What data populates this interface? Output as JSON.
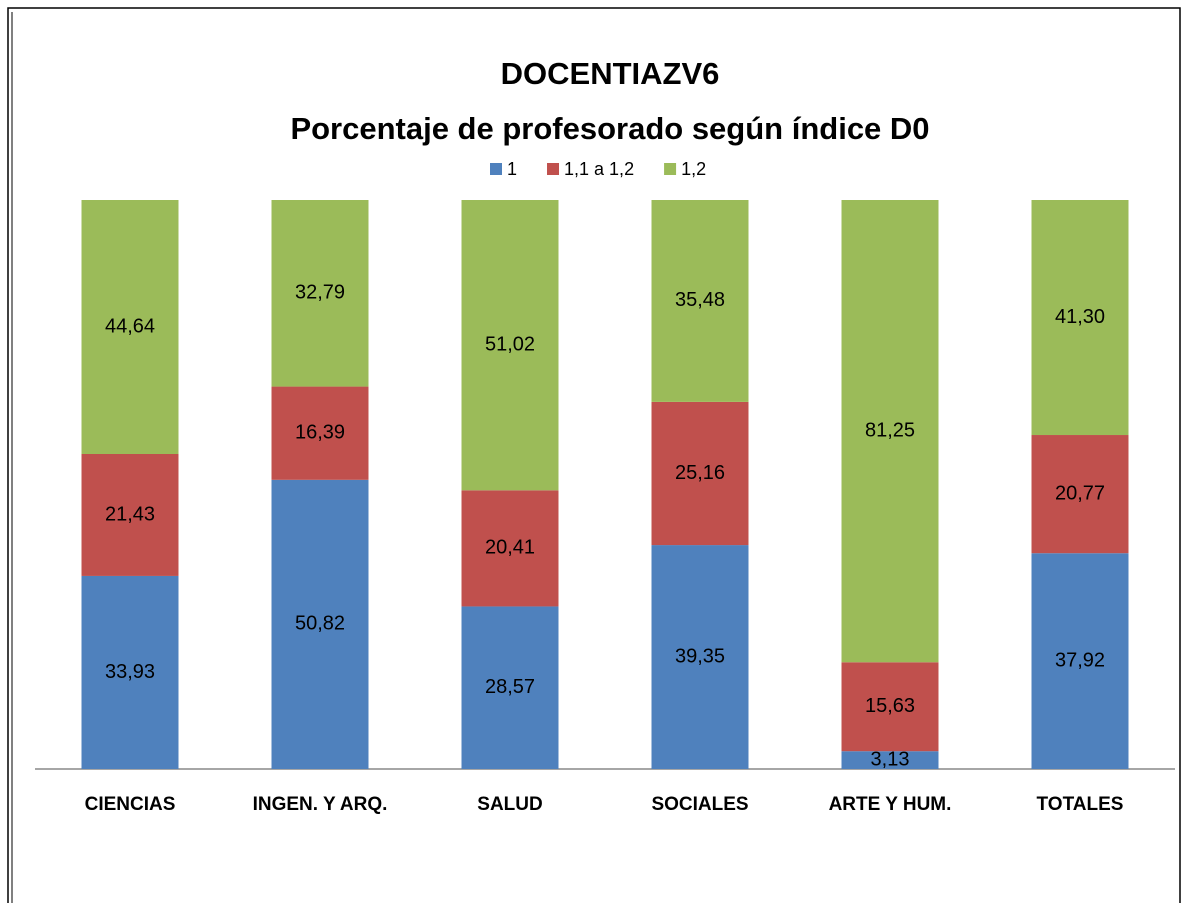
{
  "chart_data": {
    "type": "bar",
    "stacked": true,
    "title": [
      "DOCENTIAZV6",
      "Porcentaje de profesorado según índice D0"
    ],
    "categories": [
      "CIENCIAS",
      "INGEN. Y ARQ.",
      "SALUD",
      "SOCIALES",
      "ARTE Y HUM.",
      "TOTALES"
    ],
    "legend": "top",
    "series": [
      {
        "name": "1",
        "color": "#4f81bd",
        "values": [
          33.93,
          50.82,
          28.57,
          39.35,
          3.13,
          37.92
        ],
        "value_labels": [
          "33,93",
          "50,82",
          "28,57",
          "39,35",
          "3,13",
          "37,92"
        ]
      },
      {
        "name": "1,1 a 1,2",
        "color": "#c0504d",
        "values": [
          21.43,
          16.39,
          20.41,
          25.16,
          15.63,
          20.77
        ],
        "value_labels": [
          "21,43",
          "16,39",
          "20,41",
          "25,16",
          "15,63",
          "20,77"
        ]
      },
      {
        "name": "1,2",
        "color": "#9bbb59",
        "values": [
          44.64,
          32.79,
          51.02,
          35.48,
          81.25,
          41.3
        ],
        "value_labels": [
          "44,64",
          "32,79",
          "51,02",
          "35,48",
          "81,25",
          "41,30"
        ]
      }
    ]
  }
}
